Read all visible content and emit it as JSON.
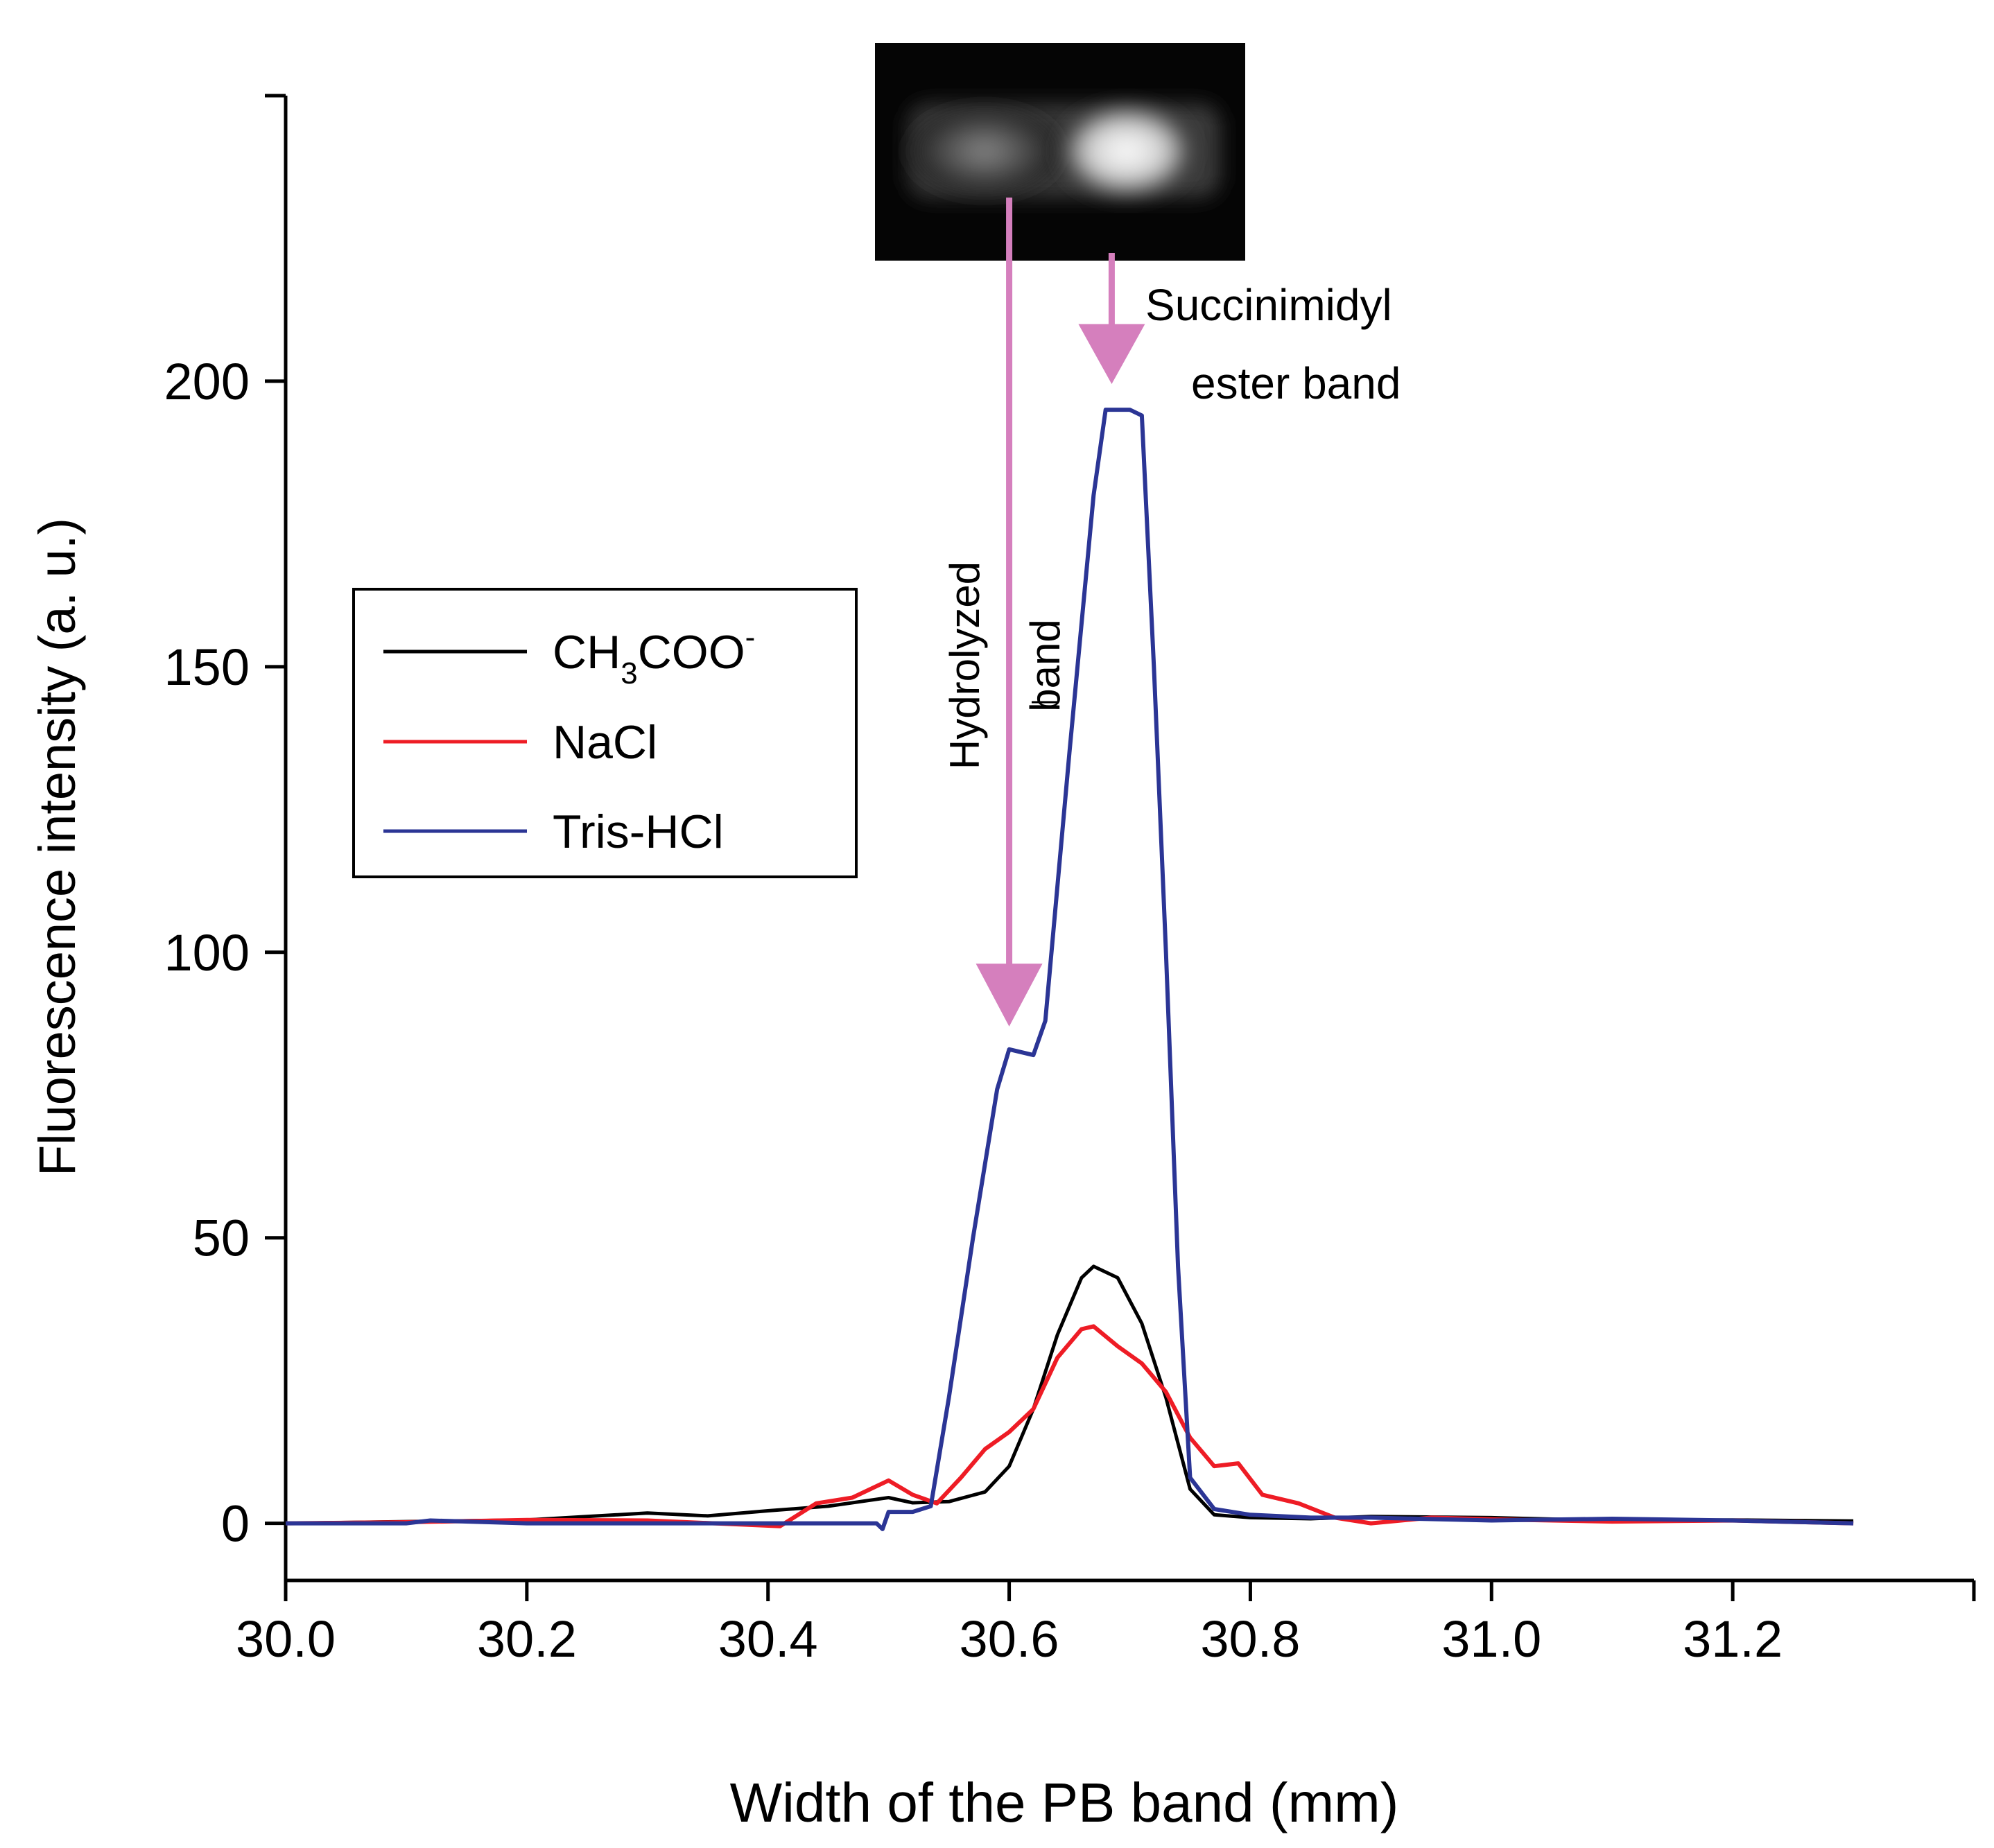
{
  "chart_data": {
    "type": "line",
    "title": "",
    "xlabel": "Width of the PB band (mm)",
    "ylabel": "Fluorescence intensity (a. u.)",
    "xlim": [
      30.0,
      31.4
    ],
    "ylim": [
      -10,
      250
    ],
    "xticks": [
      30.0,
      30.2,
      30.4,
      30.6,
      30.8,
      31.0,
      31.2
    ],
    "xtick_labels": [
      "30.0",
      "30.2",
      "30.4",
      "30.6",
      "30.8",
      "31.0",
      "31.2"
    ],
    "yticks": [
      0,
      50,
      100,
      150,
      200
    ],
    "ytick_labels": [
      "0",
      "50",
      "100",
      "150",
      "200"
    ],
    "grid": false,
    "legend_position": "left-middle",
    "legend": {
      "ch3coo_base": "CH",
      "ch3coo_sub": "3",
      "ch3coo_rest": "COO",
      "ch3coo_sup": "-",
      "nacl": "NaCl",
      "tris": "Tris-HCl"
    },
    "annotations": {
      "hydrolyzed_line1": "Hydrolyzed",
      "hydrolyzed_line2": "band",
      "succinimidyl_line1": "Succinimidyl",
      "succinimidyl_line2": "ester band"
    },
    "arrow_color": "#d57fbd",
    "series": [
      {
        "name": "CH3COO-",
        "color": "#000000",
        "points": [
          [
            30.0,
            0
          ],
          [
            30.1,
            0.3
          ],
          [
            30.2,
            0.6
          ],
          [
            30.3,
            1.8
          ],
          [
            30.35,
            1.3
          ],
          [
            30.4,
            2.2
          ],
          [
            30.45,
            3.0
          ],
          [
            30.5,
            4.5
          ],
          [
            30.52,
            3.6
          ],
          [
            30.55,
            3.8
          ],
          [
            30.58,
            5.5
          ],
          [
            30.6,
            10
          ],
          [
            30.62,
            20
          ],
          [
            30.64,
            33
          ],
          [
            30.66,
            43
          ],
          [
            30.67,
            45
          ],
          [
            30.69,
            43
          ],
          [
            30.71,
            35
          ],
          [
            30.73,
            22
          ],
          [
            30.75,
            6
          ],
          [
            30.77,
            1.5
          ],
          [
            30.8,
            1.0
          ],
          [
            30.85,
            0.8
          ],
          [
            30.9,
            1.2
          ],
          [
            31.0,
            1.0
          ],
          [
            31.1,
            0.5
          ],
          [
            31.2,
            0.6
          ],
          [
            31.3,
            0.4
          ]
        ]
      },
      {
        "name": "NaCl",
        "color": "#ee1c25",
        "points": [
          [
            30.0,
            0
          ],
          [
            30.1,
            0.2
          ],
          [
            30.2,
            0.6
          ],
          [
            30.3,
            0.5
          ],
          [
            30.41,
            -0.5
          ],
          [
            30.44,
            3.5
          ],
          [
            30.47,
            4.5
          ],
          [
            30.5,
            7.5
          ],
          [
            30.52,
            5
          ],
          [
            30.54,
            3.5
          ],
          [
            30.56,
            8
          ],
          [
            30.58,
            13
          ],
          [
            30.6,
            16
          ],
          [
            30.62,
            20
          ],
          [
            30.64,
            29
          ],
          [
            30.66,
            34
          ],
          [
            30.67,
            34.5
          ],
          [
            30.69,
            31
          ],
          [
            30.71,
            28
          ],
          [
            30.73,
            23
          ],
          [
            30.75,
            15
          ],
          [
            30.77,
            10
          ],
          [
            30.79,
            10.5
          ],
          [
            30.81,
            5
          ],
          [
            30.84,
            3.5
          ],
          [
            30.87,
            1
          ],
          [
            30.9,
            0
          ],
          [
            30.95,
            1
          ],
          [
            31.0,
            0.7
          ],
          [
            31.1,
            0.3
          ],
          [
            31.2,
            0.5
          ],
          [
            31.3,
            0
          ]
        ]
      },
      {
        "name": "Tris-HCl",
        "color": "#2b3595",
        "points": [
          [
            30.0,
            0
          ],
          [
            30.1,
            0
          ],
          [
            30.12,
            0.5
          ],
          [
            30.2,
            0
          ],
          [
            30.3,
            0
          ],
          [
            30.4,
            0
          ],
          [
            30.49,
            0
          ],
          [
            30.495,
            -1
          ],
          [
            30.5,
            2
          ],
          [
            30.52,
            2
          ],
          [
            30.535,
            3
          ],
          [
            30.55,
            22
          ],
          [
            30.57,
            50
          ],
          [
            30.59,
            76
          ],
          [
            30.6,
            83
          ],
          [
            30.62,
            82
          ],
          [
            30.63,
            88
          ],
          [
            30.65,
            135
          ],
          [
            30.67,
            180
          ],
          [
            30.68,
            195
          ],
          [
            30.7,
            195
          ],
          [
            30.71,
            194
          ],
          [
            30.72,
            150
          ],
          [
            30.73,
            100
          ],
          [
            30.74,
            45
          ],
          [
            30.75,
            8
          ],
          [
            30.77,
            2.5
          ],
          [
            30.8,
            1.5
          ],
          [
            30.85,
            1.0
          ],
          [
            30.9,
            1.0
          ],
          [
            31.0,
            0.5
          ],
          [
            31.1,
            0.8
          ],
          [
            31.2,
            0.5
          ],
          [
            31.3,
            0
          ]
        ]
      }
    ]
  }
}
